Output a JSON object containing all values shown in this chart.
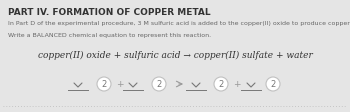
{
  "bg_color": "#e5e5e5",
  "title": "PART IV. FORMATION OF COPPER METAL",
  "title_fontsize": 6.5,
  "body1": "In Part D of the experimental procedure, 3 M sulfuric acid is added to the copper(II) oxide to produce copper(II) sulfate and water.",
  "body1_fontsize": 4.5,
  "body2": "Write a BALANCED chemical equation to represent this reaction.",
  "body2_fontsize": 4.5,
  "equation": "copper(II) oxide + sulfuric acid → copper(II) sulfate + water",
  "equation_fontsize": 6.5,
  "circle_color": "#ffffff",
  "circle_edge_color": "#c0c0c0",
  "text_color": "#777777",
  "operator_color": "#999999",
  "arrow_color": "#999999",
  "dotted_line_color": "#bbbbbb",
  "coefficients": [
    "2",
    "2",
    "2",
    "2"
  ],
  "operators": [
    "+",
    "→",
    "+"
  ],
  "title_color": "#333333",
  "body_color": "#666666",
  "eq_color": "#333333"
}
